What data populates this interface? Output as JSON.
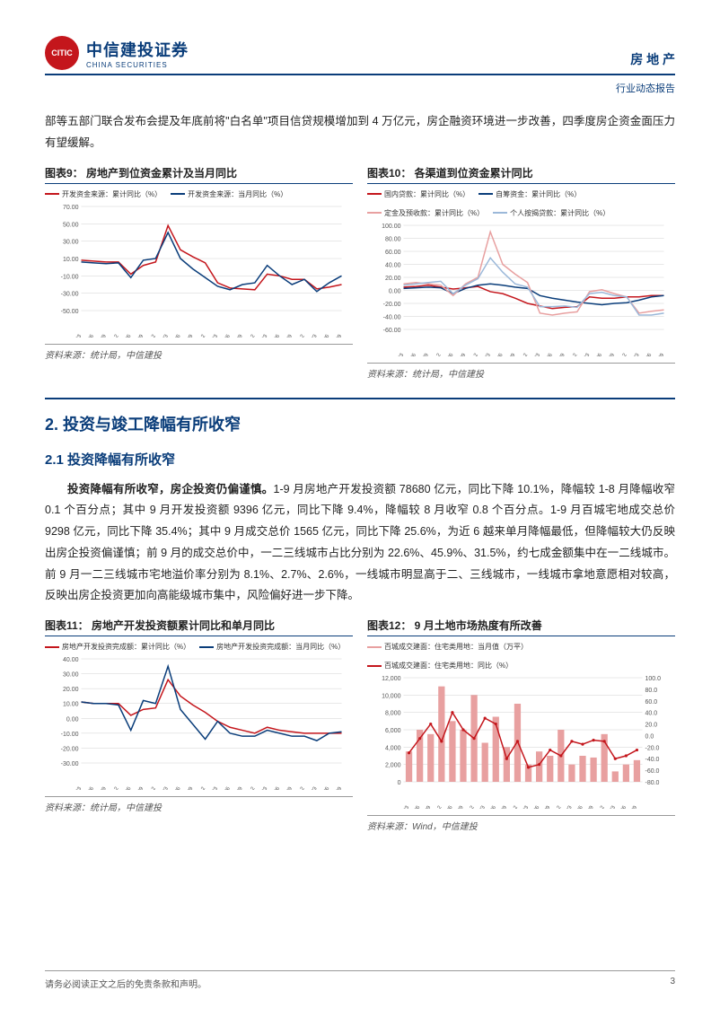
{
  "header": {
    "logo_inner": "CITIC",
    "logo_cn": "中信建投证券",
    "logo_en": "CHINA SECURITIES",
    "category": "房 地 产",
    "subcategory": "行业动态报告"
  },
  "intro_text": "部等五部门联合发布会提及年底前将\"白名单\"项目信贷规模增加到 4 万亿元，房企融资环境进一步改善，四季度房企资金面压力有望缓解。",
  "chart9": {
    "title": "图表9：  房地产到位资金累计及当月同比",
    "source": "资料来源：统计局，中信建投",
    "legend": [
      {
        "label": "开发资金来源：累计同比（%）",
        "color": "#c4161c"
      },
      {
        "label": "开发资金来源：当月同比（%）",
        "color": "#0a3d7a"
      }
    ],
    "y_ticks": [
      "70.00",
      "50.00",
      "30.00",
      "10.00",
      "-10.00",
      "-30.00",
      "-50.00"
    ],
    "x_labels": [
      "19/03",
      "19/06",
      "19/09",
      "19/12",
      "20/06",
      "20/09",
      "20/12",
      "21/03",
      "21/06",
      "21/09",
      "21/12",
      "22/03",
      "22/06",
      "22/09",
      "22/12",
      "23/03",
      "23/06",
      "23/09",
      "23/12",
      "24/03",
      "24/06",
      "24/09"
    ],
    "series1": {
      "color": "#c4161c",
      "data": [
        8,
        7,
        6,
        6,
        -8,
        2,
        6,
        48,
        20,
        12,
        5,
        -18,
        -24,
        -25,
        -26,
        -8,
        -10,
        -14,
        -14,
        -25,
        -23,
        -20
      ]
    },
    "series2": {
      "color": "#0a3d7a",
      "data": [
        6,
        5,
        4,
        5,
        -12,
        8,
        10,
        40,
        10,
        -2,
        -12,
        -22,
        -26,
        -20,
        -18,
        2,
        -10,
        -20,
        -14,
        -28,
        -18,
        -10
      ]
    }
  },
  "chart10": {
    "title": "图表10：  各渠道到位资金累计同比",
    "source": "资料来源：统计局，中信建投",
    "legend": [
      {
        "label": "国内贷款：累计同比（%）",
        "color": "#c4161c"
      },
      {
        "label": "自筹资金：累计同比（%）",
        "color": "#0a3d7a"
      },
      {
        "label": "定金及预收款：累计同比（%）",
        "color": "#e8a0a0"
      },
      {
        "label": "个人按揭贷款：累计同比（%）",
        "color": "#9bb8d9"
      }
    ],
    "y_ticks": [
      "100.00",
      "80.00",
      "60.00",
      "40.00",
      "20.00",
      "0.00",
      "-20.00",
      "-40.00",
      "-60.00"
    ],
    "x_labels": [
      "19/03",
      "19/06",
      "19/09",
      "19/12",
      "20/06",
      "20/09",
      "20/12",
      "21/03",
      "21/06",
      "21/09",
      "21/12",
      "22/03",
      "22/06",
      "22/09",
      "22/12",
      "23/03",
      "23/06",
      "23/09",
      "23/12",
      "24/03",
      "24/06",
      "24/09"
    ],
    "s1": {
      "color": "#c4161c",
      "data": [
        5,
        6,
        8,
        5,
        2,
        4,
        6,
        -2,
        -5,
        -12,
        -20,
        -24,
        -28,
        -26,
        -25,
        -10,
        -12,
        -12,
        -10,
        -10,
        -8,
        -8
      ]
    },
    "s2": {
      "color": "#0a3d7a",
      "data": [
        3,
        4,
        5,
        4,
        -5,
        3,
        8,
        10,
        8,
        5,
        3,
        -8,
        -12,
        -15,
        -18,
        -20,
        -22,
        -20,
        -19,
        -15,
        -10,
        -8
      ]
    },
    "s3": {
      "color": "#e8a0a0",
      "data": [
        10,
        12,
        10,
        8,
        -8,
        10,
        20,
        90,
        40,
        25,
        12,
        -35,
        -38,
        -35,
        -33,
        -2,
        1,
        -5,
        -10,
        -35,
        -32,
        -30
      ]
    },
    "s4": {
      "color": "#9bb8d9",
      "data": [
        8,
        10,
        12,
        14,
        -5,
        8,
        18,
        50,
        28,
        10,
        5,
        -25,
        -25,
        -24,
        -26,
        -5,
        -3,
        -8,
        -10,
        -38,
        -38,
        -35
      ]
    }
  },
  "section2": {
    "heading": "2. 投资与竣工降幅有所收窄",
    "sub": "2.1 投资降幅有所收窄",
    "para": "投资降幅有所收窄，房企投资仍偏谨慎。1-9 月房地产开发投资额 78680 亿元，同比下降 10.1%，降幅较 1-8 月降幅收窄 0.1 个百分点；其中 9 月开发投资额 9396 亿元，同比下降 9.4%，降幅较 8 月收窄 0.8 个百分点。1-9 月百城宅地成交总价 9298 亿元，同比下降 35.4%；其中 9 月成交总价 1565 亿元，同比下降 25.6%，为近 6 越来单月降幅最低，但降幅较大仍反映出房企投资偏谨慎；前 9 月的成交总价中，一二三线城市占比分别为 22.6%、45.9%、31.5%，约七成金额集中在一二线城市。前 9 月一二三线城市宅地溢价率分别为 8.1%、2.7%、2.6%，一线城市明显高于二、三线城市，一线城市拿地意愿相对较高，反映出房企投资更加向高能级城市集中，风险偏好进一步下降。"
  },
  "chart11": {
    "title": "图表11：  房地产开发投资额累计同比和单月同比",
    "source": "资料来源：统计局，中信建投",
    "legend": [
      {
        "label": "房地产开发投资完成额：累计同比（%）",
        "color": "#c4161c"
      },
      {
        "label": "房地产开发投资完成额：当月同比（%）",
        "color": "#0a3d7a"
      }
    ],
    "y_ticks": [
      "40.00",
      "30.00",
      "20.00",
      "10.00",
      "0.00",
      "-10.00",
      "-20.00",
      "-30.00"
    ],
    "x_labels": [
      "19/03",
      "19/06",
      "19/09",
      "19/12",
      "20/06",
      "20/09",
      "20/12",
      "21/03",
      "21/06",
      "21/09",
      "21/12",
      "22/03",
      "22/06",
      "22/09",
      "22/12",
      "23/03",
      "23/06",
      "23/09",
      "23/12",
      "24/03",
      "24/06",
      "24/09"
    ],
    "s1": {
      "color": "#c4161c",
      "data": [
        11,
        10,
        10,
        10,
        2,
        6,
        7,
        26,
        15,
        9,
        4,
        -2,
        -6,
        -8,
        -10,
        -6,
        -8,
        -9,
        -10,
        -10,
        -10,
        -10
      ]
    },
    "s2": {
      "color": "#0a3d7a",
      "data": [
        11,
        10,
        10,
        9,
        -8,
        12,
        10,
        35,
        6,
        -4,
        -14,
        -2,
        -10,
        -12,
        -12,
        -8,
        -10,
        -12,
        -12,
        -15,
        -10,
        -9
      ]
    }
  },
  "chart12": {
    "title": "图表12：  9 月土地市场热度有所改善",
    "source": "资料来源：Wind，中信建投",
    "legend": [
      {
        "label": "百城成交建面：住宅类用地：当月值（万平）",
        "color": "#e8a0a0"
      },
      {
        "label": "百城成交建面：住宅类用地：同比（%）",
        "color": "#c4161c"
      }
    ],
    "y_left": [
      "12,000",
      "10,000",
      "8,000",
      "6,000",
      "4,000",
      "2,000",
      "0"
    ],
    "y_right": [
      "100.0",
      "80.0",
      "60.0",
      "40.0",
      "20.0",
      "0.0",
      "-20.0",
      "-40.0",
      "-60.0",
      "-80.0"
    ],
    "x_labels": [
      "19/03",
      "19/06",
      "19/09",
      "19/12",
      "20/06",
      "20/09",
      "20/12",
      "21/03",
      "21/06",
      "21/09",
      "21/12",
      "22/03",
      "22/06",
      "22/09",
      "22/12",
      "23/03",
      "23/06",
      "23/09",
      "23/12",
      "24/03",
      "24/06",
      "24/09"
    ],
    "bars": {
      "color": "#e8a0a0",
      "data": [
        3500,
        6000,
        5500,
        11000,
        7000,
        6000,
        10000,
        4500,
        7500,
        4000,
        9000,
        2000,
        3500,
        3000,
        6000,
        2000,
        3000,
        2800,
        5500,
        1200,
        2000,
        2500
      ]
    },
    "line": {
      "color": "#c4161c",
      "data": [
        -30,
        -5,
        20,
        -10,
        40,
        10,
        -5,
        30,
        20,
        -40,
        -10,
        -55,
        -50,
        -25,
        -35,
        -10,
        -15,
        -8,
        -10,
        -40,
        -35,
        -25
      ]
    }
  },
  "footer": {
    "disclaimer": "请务必阅读正文之后的免责条款和声明。",
    "page": "3"
  },
  "colors": {
    "navy": "#0a3d7a",
    "red": "#c4161c",
    "pink": "#e8a0a0",
    "lblue": "#9bb8d9",
    "grid": "#d0d0d0"
  }
}
